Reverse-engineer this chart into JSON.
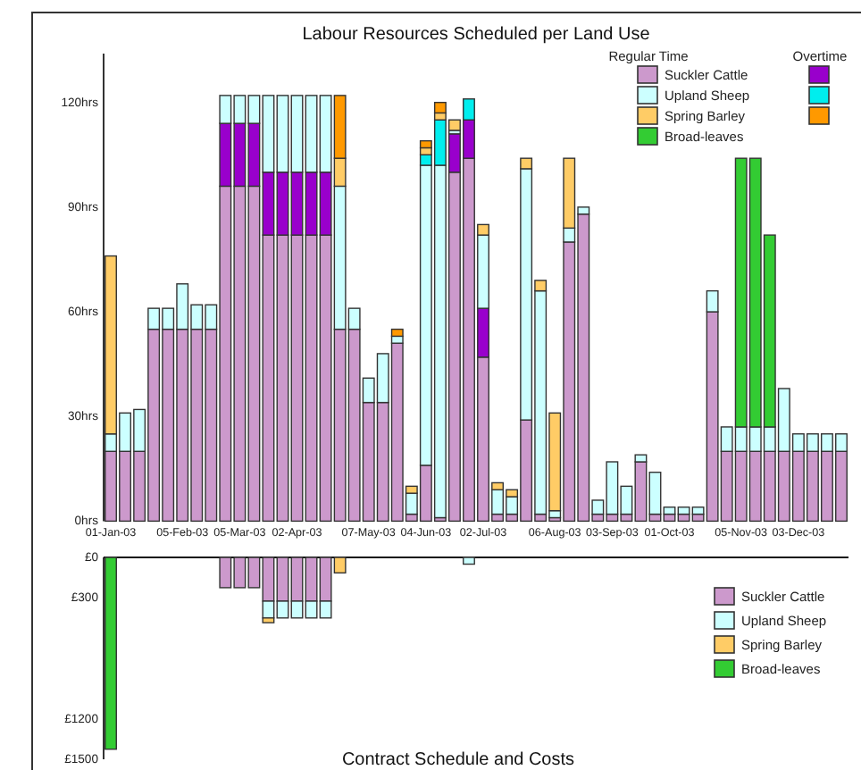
{
  "chart_data": [
    {
      "type": "bar",
      "title": "Labour Resources Scheduled per Land Use",
      "stacked": true,
      "legend": "top right",
      "annotations": [
        "Regular Time",
        "Overtime"
      ],
      "categories": [
        "01-Jan-03",
        null,
        null,
        null,
        null,
        "05-Feb-03",
        null,
        null,
        null,
        "05-Mar-03",
        null,
        null,
        null,
        "02-Apr-03",
        null,
        null,
        null,
        null,
        "07-May-03",
        null,
        null,
        null,
        "04-Jun-03",
        null,
        null,
        null,
        "02-Jul-03",
        null,
        null,
        null,
        null,
        "06-Aug-03",
        null,
        null,
        null,
        "03-Sep-03",
        null,
        null,
        null,
        "01-Oct-03",
        null,
        null,
        null,
        null,
        "05-Nov-03",
        null,
        null,
        null,
        "03-Dec-03",
        null,
        null,
        null
      ],
      "ylim": [
        0,
        134
      ],
      "yticks": [
        {
          "value": 0,
          "label": "0hrs"
        },
        {
          "value": 30,
          "label": "30hrs"
        },
        {
          "value": 60,
          "label": "60hrs"
        },
        {
          "value": 90,
          "label": "90hrs"
        },
        {
          "value": 120,
          "label": "120hrs"
        }
      ],
      "series": [
        {
          "name": "Suckler Cattle",
          "color": "#cc99cc",
          "values": [
            20,
            20,
            20,
            55,
            55,
            55,
            55,
            55,
            96,
            96,
            96,
            82,
            82,
            82,
            82,
            82,
            55,
            55,
            34,
            34,
            51,
            2,
            16,
            1,
            100,
            104,
            47,
            2,
            2,
            29,
            2,
            1,
            80,
            88,
            2,
            2,
            2,
            17,
            2,
            2,
            2,
            2,
            60,
            20,
            20,
            20,
            20,
            20,
            20,
            20,
            20,
            20
          ]
        },
        {
          "color": "#9900cc",
          "values": [
            null,
            null,
            null,
            null,
            null,
            null,
            null,
            null,
            18,
            18,
            18,
            18,
            18,
            18,
            18,
            18,
            null,
            null,
            null,
            null,
            null,
            null,
            null,
            null,
            11,
            11,
            14,
            null,
            null,
            null,
            null,
            null,
            null,
            null,
            null,
            null,
            null,
            null,
            null,
            null,
            null,
            null,
            null,
            null,
            null,
            null,
            null,
            null,
            null,
            null,
            null,
            null
          ]
        },
        {
          "name": "Upland Sheep",
          "color": "#ccffff",
          "values": [
            5,
            11,
            12,
            6,
            6,
            13,
            7,
            7,
            8,
            8,
            8,
            22,
            22,
            22,
            22,
            22,
            41,
            6,
            7,
            14,
            2,
            6,
            86,
            101,
            1,
            null,
            21,
            7,
            5,
            72,
            64,
            2,
            4,
            2,
            4,
            15,
            8,
            2,
            12,
            2,
            2,
            2,
            6,
            7,
            7,
            7,
            7,
            18,
            5,
            5,
            5,
            5
          ]
        },
        {
          "color": "#00eeee",
          "values": [
            null,
            null,
            null,
            null,
            null,
            null,
            null,
            null,
            null,
            null,
            null,
            null,
            null,
            null,
            null,
            null,
            null,
            null,
            null,
            null,
            null,
            null,
            3,
            13,
            null,
            6,
            null,
            null,
            null,
            null,
            null,
            null,
            null,
            null,
            null,
            null,
            null,
            null,
            null,
            null,
            null,
            null,
            null,
            null,
            null,
            null,
            null,
            null,
            null,
            null,
            null,
            null
          ]
        },
        {
          "name": "Spring Barley",
          "color": "#ffcc66",
          "values": [
            51,
            null,
            null,
            null,
            null,
            null,
            null,
            null,
            null,
            null,
            null,
            null,
            null,
            null,
            null,
            null,
            8,
            null,
            null,
            null,
            null,
            2,
            2,
            2,
            3,
            null,
            3,
            2,
            2,
            3,
            3,
            28,
            20,
            null,
            null,
            null,
            null,
            null,
            null,
            null,
            null,
            null,
            null,
            null,
            null,
            null,
            null,
            null,
            null,
            null,
            null,
            null
          ]
        },
        {
          "color": "#ff9900",
          "values": [
            null,
            null,
            null,
            null,
            null,
            null,
            null,
            null,
            null,
            null,
            null,
            null,
            null,
            null,
            null,
            null,
            18,
            null,
            null,
            null,
            2,
            null,
            2,
            3,
            null,
            null,
            null,
            null,
            null,
            null,
            null,
            null,
            null,
            null,
            null,
            null,
            null,
            null,
            null,
            null,
            null,
            null,
            null,
            null,
            null,
            null,
            null,
            null,
            null,
            null,
            null,
            null
          ]
        },
        {
          "name": "Broad-leaves",
          "color": "#33cc33",
          "values": [
            null,
            null,
            null,
            null,
            null,
            null,
            null,
            null,
            null,
            null,
            null,
            null,
            null,
            null,
            null,
            null,
            null,
            null,
            null,
            null,
            null,
            null,
            null,
            null,
            null,
            null,
            null,
            null,
            null,
            null,
            null,
            null,
            null,
            null,
            null,
            null,
            null,
            null,
            null,
            null,
            null,
            null,
            null,
            null,
            77,
            77,
            55,
            null,
            null,
            null,
            null,
            null
          ]
        }
      ]
    },
    {
      "type": "bar",
      "title": "Contract Schedule and Costs",
      "stacked": true,
      "legend": "right",
      "tick_labels": "y",
      "categories": [
        null,
        null,
        null,
        null,
        null,
        null,
        null,
        null,
        null,
        null,
        null,
        null,
        null,
        null,
        null,
        null,
        null,
        null,
        null,
        null,
        null,
        null,
        null,
        null,
        null,
        null,
        null,
        null,
        null,
        null,
        null,
        null,
        null,
        null,
        null,
        null,
        null,
        null,
        null,
        null,
        null,
        null,
        null,
        null,
        null,
        null,
        null,
        null,
        null,
        null,
        null,
        null
      ],
      "ylim": [
        1500,
        0
      ],
      "yticks": [
        {
          "value": 0,
          "label": "£0"
        },
        {
          "value": 300,
          "label": "£300"
        },
        {
          "value": 1200,
          "label": "£1200"
        },
        {
          "value": 1500,
          "label": "£1500"
        }
      ],
      "series": [
        {
          "name": "Suckler Cattle",
          "color": "#cc99cc",
          "values": [
            null,
            null,
            null,
            null,
            null,
            null,
            null,
            null,
            225,
            225,
            225,
            325,
            325,
            325,
            325,
            325,
            null,
            null,
            null,
            null,
            null,
            null,
            null,
            null,
            null,
            null,
            null,
            null,
            null,
            null,
            null,
            null,
            null,
            null,
            null,
            null,
            null,
            null,
            null,
            null,
            null,
            null,
            null,
            null,
            null,
            null,
            null,
            null,
            null,
            null,
            null,
            null
          ]
        },
        {
          "name": "Upland Sheep",
          "color": "#ccffff",
          "values": [
            null,
            null,
            null,
            null,
            null,
            null,
            null,
            null,
            null,
            null,
            null,
            125,
            125,
            125,
            125,
            125,
            null,
            null,
            null,
            null,
            null,
            null,
            null,
            null,
            null,
            50,
            null,
            null,
            null,
            null,
            null,
            null,
            null,
            null,
            null,
            null,
            null,
            null,
            null,
            null,
            null,
            null,
            null,
            null,
            null,
            null,
            null,
            null,
            null,
            null,
            null,
            null
          ]
        },
        {
          "name": "Spring Barley",
          "color": "#ffcc66",
          "values": [
            null,
            null,
            null,
            null,
            null,
            null,
            null,
            null,
            null,
            null,
            null,
            35,
            null,
            null,
            null,
            null,
            115,
            null,
            null,
            null,
            null,
            null,
            null,
            null,
            null,
            null,
            null,
            null,
            null,
            null,
            null,
            null,
            null,
            null,
            null,
            null,
            null,
            null,
            null,
            null,
            null,
            null,
            null,
            null,
            null,
            null,
            null,
            null,
            null,
            null,
            null,
            null
          ]
        },
        {
          "name": "Broad-leaves",
          "color": "#33cc33",
          "values": [
            1425,
            null,
            null,
            null,
            null,
            null,
            null,
            null,
            null,
            null,
            null,
            null,
            null,
            null,
            null,
            null,
            null,
            null,
            null,
            null,
            null,
            null,
            null,
            null,
            null,
            null,
            null,
            null,
            null,
            null,
            null,
            null,
            null,
            null,
            null,
            null,
            null,
            null,
            null,
            null,
            null,
            null,
            null,
            null,
            null,
            null,
            null,
            null,
            null,
            null,
            null,
            null
          ]
        }
      ]
    }
  ]
}
